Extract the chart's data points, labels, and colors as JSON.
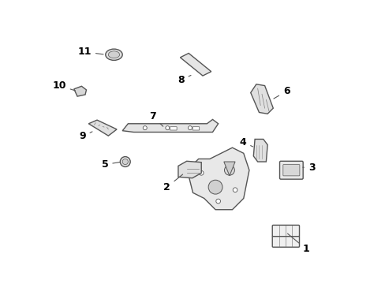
{
  "title": "",
  "background_color": "#ffffff",
  "line_color": "#555555",
  "text_color": "#000000",
  "figsize": [
    4.89,
    3.6
  ],
  "dpi": 100
}
